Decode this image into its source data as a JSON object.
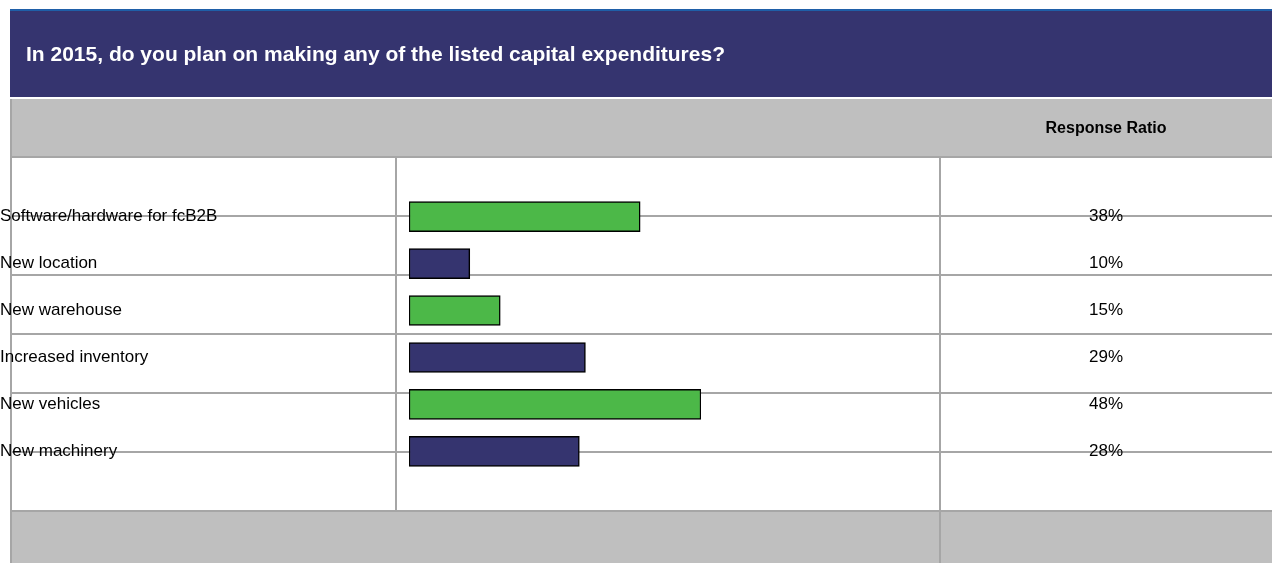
{
  "chart_data": {
    "type": "bar",
    "orientation": "horizontal",
    "title": "In 2015, do you plan on making any of the listed capital expenditures?",
    "annotations": [
      "Response Ratio"
    ],
    "categories": [
      "Software/hardware for fcB2B",
      "New location",
      "New warehouse",
      "Increased inventory",
      "New vehicles",
      "New machinery"
    ],
    "values": [
      38,
      10,
      15,
      29,
      48,
      28
    ],
    "colors": [
      "#4cb848",
      "#35346f",
      "#4cb848",
      "#35346f",
      "#4cb848",
      "#35346f"
    ],
    "value_labels": [
      "38%",
      "10%",
      "15%",
      "29%",
      "48%",
      "28%"
    ]
  }
}
